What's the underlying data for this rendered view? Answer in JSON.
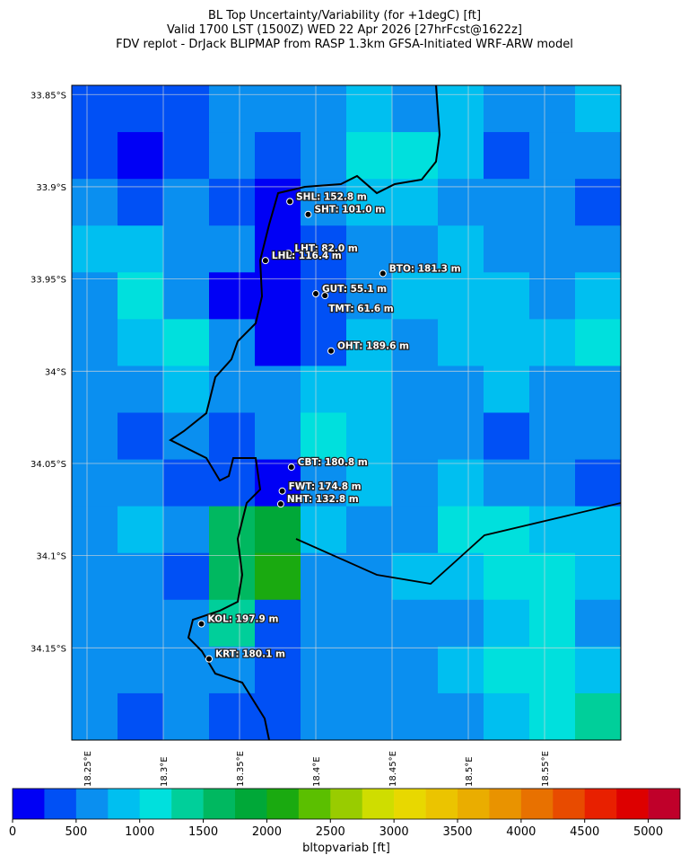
{
  "title": [
    "BL Top Uncertainty/Variability (for +1degC) [ft]",
    "Valid 1700 LST (1500Z) WED 22 Apr 2026 [27hrFcst@1622z]",
    "FDV replot - DrJack BLIPMAP from RASP 1.3km GFSA-Initiated WRF-ARW model"
  ],
  "map": {
    "xlim": [
      18.24,
      18.6
    ],
    "ylim": [
      33.845,
      34.2
    ],
    "xticks": [
      {
        "value": 18.25,
        "label": "18.25°E"
      },
      {
        "value": 18.3,
        "label": "18.3°E"
      },
      {
        "value": 18.35,
        "label": "18.35°E"
      },
      {
        "value": 18.4,
        "label": "18.4°E"
      },
      {
        "value": 18.45,
        "label": "18.45°E"
      },
      {
        "value": 18.5,
        "label": "18.5°E"
      },
      {
        "value": 18.55,
        "label": "18.55°E"
      }
    ],
    "yticks": [
      {
        "value": 33.85,
        "label": "33.85°S"
      },
      {
        "value": 33.9,
        "label": "33.9°S"
      },
      {
        "value": 33.95,
        "label": "33.95°S"
      },
      {
        "value": 34,
        "label": "34°S"
      },
      {
        "value": 34.05,
        "label": "34.05°S"
      },
      {
        "value": 34.1,
        "label": "34.1°S"
      },
      {
        "value": 34.15,
        "label": "34.15°S"
      }
    ],
    "field": [
      [
        400,
        300,
        400,
        500,
        600,
        700,
        800,
        700,
        800,
        600,
        700,
        800
      ],
      [
        400,
        200,
        300,
        500,
        300,
        600,
        1000,
        1100,
        800,
        300,
        600,
        700
      ],
      [
        600,
        400,
        500,
        400,
        200,
        500,
        900,
        800,
        700,
        700,
        500,
        400
      ],
      [
        800,
        900,
        600,
        500,
        150,
        400,
        600,
        700,
        800,
        700,
        600,
        600
      ],
      [
        700,
        1000,
        600,
        200,
        100,
        300,
        700,
        800,
        900,
        800,
        700,
        800
      ],
      [
        700,
        800,
        1100,
        700,
        100,
        300,
        800,
        700,
        800,
        900,
        800,
        1000
      ],
      [
        600,
        600,
        800,
        700,
        600,
        900,
        800,
        600,
        700,
        800,
        700,
        700
      ],
      [
        500,
        400,
        500,
        400,
        700,
        1000,
        800,
        700,
        600,
        400,
        700,
        600
      ],
      [
        600,
        500,
        400,
        300,
        200,
        700,
        800,
        700,
        800,
        700,
        600,
        300
      ],
      [
        700,
        900,
        600,
        1700,
        1900,
        800,
        600,
        700,
        1200,
        1000,
        900,
        800
      ],
      [
        600,
        500,
        400,
        1600,
        2000,
        700,
        600,
        800,
        900,
        1200,
        1100,
        800
      ],
      [
        600,
        500,
        700,
        1300,
        400,
        600,
        500,
        700,
        600,
        900,
        1000,
        700
      ],
      [
        500,
        600,
        700,
        500,
        300,
        600,
        700,
        600,
        900,
        1100,
        1200,
        900
      ],
      [
        500,
        400,
        500,
        300,
        400,
        600,
        700,
        500,
        700,
        900,
        1000,
        1300
      ]
    ],
    "stations": [
      {
        "label": "SHL: 152.8 m",
        "lon": 18.383,
        "lat": 33.908
      },
      {
        "label": "SHT: 101.0 m",
        "lon": 18.395,
        "lat": 33.915
      },
      {
        "label": "LHT: 82.0 m",
        "lon": 18.382,
        "lat": 33.936
      },
      {
        "label": "LHL: 116.4 m",
        "lon": 18.367,
        "lat": 33.94
      },
      {
        "label": "BTO: 181.3 m",
        "lon": 18.444,
        "lat": 33.947
      },
      {
        "label": "GUT: 55.1 m",
        "lon": 18.4,
        "lat": 33.958
      },
      {
        "label": "TMT: 61.6 m",
        "lon": 18.406,
        "lat": 33.959
      },
      {
        "label": "OHT: 189.6 m",
        "lon": 18.41,
        "lat": 33.989
      },
      {
        "label": "CBT: 180.8 m",
        "lon": 18.384,
        "lat": 34.052
      },
      {
        "label": "FWT: 174.8 m",
        "lon": 18.378,
        "lat": 34.065
      },
      {
        "label": "NHT: 132.8 m",
        "lon": 18.377,
        "lat": 34.072
      },
      {
        "label": "KOL: 197.9 m",
        "lon": 18.325,
        "lat": 34.137
      },
      {
        "label": "KRT: 180.1 m",
        "lon": 18.33,
        "lat": 34.156
      }
    ]
  },
  "colorbar": {
    "label": "bltopvariab [ft]",
    "lim": [
      0,
      5250
    ],
    "ticks": [
      0,
      500,
      1000,
      1500,
      2000,
      2500,
      3000,
      3500,
      4000,
      4500,
      5000
    ],
    "colors": [
      "#0000f5",
      "#0050f5",
      "#0a8ff0",
      "#00bff0",
      "#00e0dd",
      "#00cf9a",
      "#00b860",
      "#00a838",
      "#1aaa10",
      "#5bbf00",
      "#99cc00",
      "#cfdd00",
      "#e8d800",
      "#ebc400",
      "#eaad00",
      "#e99300",
      "#e87100",
      "#e84b00",
      "#e82000",
      "#dd0000",
      "#c0002a"
    ]
  }
}
